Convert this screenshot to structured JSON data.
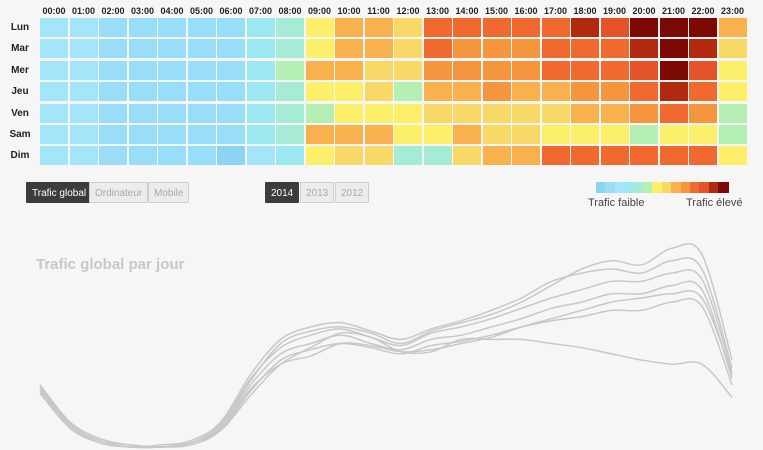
{
  "chart_data": [
    {
      "type": "heatmap",
      "hours": [
        "00:00",
        "01:00",
        "02:00",
        "03:00",
        "04:00",
        "05:00",
        "06:00",
        "07:00",
        "08:00",
        "09:00",
        "10:00",
        "11:00",
        "12:00",
        "13:00",
        "14:00",
        "15:00",
        "16:00",
        "17:00",
        "18:00",
        "19:00",
        "20:00",
        "21:00",
        "22:00",
        "23:00"
      ],
      "days": [
        "Lun",
        "Mar",
        "Mer",
        "Jeu",
        "Ven",
        "Sam",
        "Dim"
      ],
      "levels": [
        [
          2,
          2,
          1,
          1,
          1,
          1,
          1,
          3,
          4,
          6,
          8,
          8,
          7,
          10,
          10,
          10,
          10,
          10,
          12,
          11,
          13,
          13,
          13,
          8
        ],
        [
          2,
          2,
          1,
          1,
          1,
          1,
          1,
          3,
          4,
          6,
          8,
          8,
          7,
          10,
          9,
          9,
          9,
          10,
          10,
          10,
          12,
          13,
          12,
          7
        ],
        [
          2,
          2,
          1,
          1,
          1,
          1,
          1,
          3,
          5,
          8,
          8,
          7,
          7,
          9,
          9,
          9,
          9,
          10,
          10,
          10,
          11,
          13,
          11,
          6
        ],
        [
          2,
          2,
          1,
          1,
          1,
          1,
          1,
          3,
          4,
          6,
          6,
          7,
          5,
          8,
          8,
          9,
          8,
          8,
          9,
          9,
          10,
          12,
          10,
          6
        ],
        [
          2,
          2,
          1,
          1,
          1,
          1,
          1,
          3,
          4,
          5,
          6,
          6,
          6,
          7,
          7,
          7,
          7,
          7,
          8,
          8,
          9,
          10,
          9,
          5
        ],
        [
          2,
          2,
          1,
          1,
          1,
          1,
          1,
          3,
          4,
          8,
          8,
          8,
          6,
          6,
          8,
          7,
          7,
          6,
          6,
          6,
          5,
          6,
          6,
          5
        ],
        [
          2,
          2,
          1,
          1,
          1,
          1,
          0,
          2,
          3,
          6,
          7,
          7,
          4,
          4,
          7,
          8,
          8,
          10,
          10,
          10,
          10,
          10,
          10,
          6
        ]
      ],
      "palette": [
        "#8cd4f2",
        "#98def8",
        "#a5e5fa",
        "#9ce8f0",
        "#a6ebd6",
        "#b4f0b4",
        "#fcef6a",
        "#f8d968",
        "#f8b14d",
        "#f5953d",
        "#f0692e",
        "#e4532a",
        "#b12a10",
        "#7c0903"
      ],
      "legend": {
        "low_label": "Trafic faible",
        "high_label": "Trafic élevé"
      }
    },
    {
      "type": "line",
      "title": "Trafic global par jour",
      "x": [
        "00:00",
        "01:00",
        "02:00",
        "03:00",
        "04:00",
        "05:00",
        "06:00",
        "07:00",
        "08:00",
        "09:00",
        "10:00",
        "11:00",
        "12:00",
        "13:00",
        "14:00",
        "15:00",
        "16:00",
        "17:00",
        "18:00",
        "19:00",
        "20:00",
        "21:00",
        "22:00",
        "23:00"
      ],
      "ylim": [
        0,
        100
      ],
      "series": [
        {
          "values": [
            30,
            12,
            4,
            1,
            0,
            2,
            10,
            32,
            50,
            56,
            58,
            55,
            50,
            56,
            60,
            64,
            70,
            78,
            86,
            90,
            88,
            96,
            93,
            42
          ]
        },
        {
          "values": [
            28,
            11,
            3,
            0,
            1,
            3,
            12,
            35,
            52,
            58,
            60,
            56,
            52,
            57,
            61,
            66,
            72,
            80,
            84,
            86,
            84,
            90,
            86,
            38
          ]
        },
        {
          "values": [
            29,
            11,
            3,
            1,
            0,
            2,
            11,
            33,
            48,
            54,
            57,
            53,
            49,
            55,
            58,
            62,
            67,
            72,
            76,
            80,
            80,
            84,
            81,
            36
          ]
        },
        {
          "values": [
            27,
            10,
            2,
            0,
            0,
            2,
            9,
            30,
            45,
            50,
            54,
            50,
            47,
            52,
            54,
            58,
            62,
            67,
            70,
            74,
            74,
            78,
            76,
            33
          ]
        },
        {
          "values": [
            26,
            9,
            2,
            0,
            0,
            1,
            8,
            27,
            42,
            47,
            50,
            48,
            45,
            49,
            51,
            54,
            58,
            61,
            63,
            66,
            66,
            70,
            68,
            30
          ]
        },
        {
          "values": [
            28,
            10,
            2,
            0,
            0,
            2,
            8,
            25,
            40,
            48,
            55,
            53,
            46,
            46,
            52,
            52,
            52,
            50,
            48,
            45,
            42,
            40,
            40,
            24
          ]
        },
        {
          "values": [
            30,
            12,
            4,
            1,
            0,
            2,
            9,
            28,
            40,
            44,
            50,
            49,
            46,
            47,
            50,
            53,
            58,
            62,
            66,
            70,
            72,
            74,
            72,
            35
          ]
        }
      ]
    }
  ],
  "controls": {
    "view_buttons": [
      {
        "label": "Trafic global",
        "active": true
      },
      {
        "label": "Ordinateur",
        "active": false
      },
      {
        "label": "Mobile",
        "active": false
      }
    ],
    "year_buttons": [
      {
        "label": "2014",
        "active": true
      },
      {
        "label": "2013",
        "active": false
      },
      {
        "label": "2012",
        "active": false
      }
    ]
  },
  "colors": {
    "active_button": "#3c3c3c",
    "curve": "#c8c8c8",
    "background": "#f6f6f6"
  }
}
